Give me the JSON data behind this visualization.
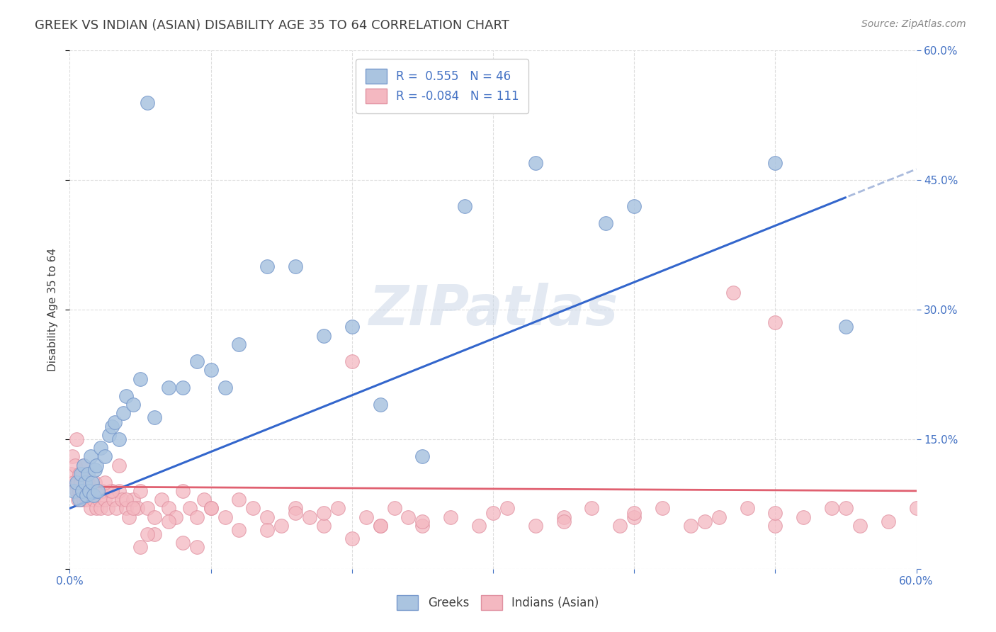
{
  "title": "GREEK VS INDIAN (ASIAN) DISABILITY AGE 35 TO 64 CORRELATION CHART",
  "source": "Source: ZipAtlas.com",
  "ylabel": "Disability Age 35 to 64",
  "xlim": [
    0.0,
    0.6
  ],
  "ylim": [
    0.0,
    0.6
  ],
  "greek_line_start_y": 0.07,
  "greek_line_end_x": 0.55,
  "greek_line_end_y": 0.43,
  "greek_line_color": "#3366cc",
  "greek_dash_color": "#aabbdd",
  "indian_line_color": "#e06070",
  "indian_line_start_y": 0.095,
  "indian_line_slope": -0.008,
  "watermark": "ZIPatlas",
  "bg_color": "#ffffff",
  "grid_color": "#dddddd",
  "title_color": "#404040",
  "tick_color": "#4472c4",
  "greek_scatter_face": "#aac4e0",
  "greek_scatter_edge": "#7799cc",
  "indian_scatter_face": "#f4b8c1",
  "indian_scatter_edge": "#e090a0",
  "greek_points_x": [
    0.003,
    0.005,
    0.007,
    0.008,
    0.009,
    0.01,
    0.011,
    0.012,
    0.013,
    0.014,
    0.015,
    0.016,
    0.017,
    0.018,
    0.019,
    0.02,
    0.022,
    0.025,
    0.028,
    0.03,
    0.032,
    0.035,
    0.038,
    0.04,
    0.045,
    0.05,
    0.055,
    0.06,
    0.07,
    0.08,
    0.09,
    0.1,
    0.11,
    0.12,
    0.14,
    0.16,
    0.18,
    0.2,
    0.22,
    0.25,
    0.28,
    0.33,
    0.38,
    0.4,
    0.5,
    0.55
  ],
  "greek_points_y": [
    0.09,
    0.1,
    0.08,
    0.11,
    0.09,
    0.12,
    0.1,
    0.085,
    0.11,
    0.09,
    0.13,
    0.1,
    0.085,
    0.115,
    0.12,
    0.09,
    0.14,
    0.13,
    0.155,
    0.165,
    0.17,
    0.15,
    0.18,
    0.2,
    0.19,
    0.22,
    0.54,
    0.175,
    0.21,
    0.21,
    0.24,
    0.23,
    0.21,
    0.26,
    0.35,
    0.35,
    0.27,
    0.28,
    0.19,
    0.13,
    0.42,
    0.47,
    0.4,
    0.42,
    0.47,
    0.28
  ],
  "indian_points_x": [
    0.001,
    0.002,
    0.003,
    0.004,
    0.005,
    0.005,
    0.006,
    0.006,
    0.007,
    0.007,
    0.008,
    0.008,
    0.009,
    0.009,
    0.01,
    0.01,
    0.011,
    0.012,
    0.013,
    0.014,
    0.015,
    0.016,
    0.017,
    0.018,
    0.019,
    0.02,
    0.021,
    0.022,
    0.023,
    0.025,
    0.027,
    0.029,
    0.031,
    0.033,
    0.035,
    0.037,
    0.04,
    0.042,
    0.045,
    0.048,
    0.05,
    0.055,
    0.06,
    0.065,
    0.07,
    0.075,
    0.08,
    0.085,
    0.09,
    0.095,
    0.1,
    0.11,
    0.12,
    0.13,
    0.14,
    0.15,
    0.16,
    0.17,
    0.18,
    0.19,
    0.2,
    0.21,
    0.22,
    0.23,
    0.24,
    0.25,
    0.27,
    0.29,
    0.31,
    0.33,
    0.35,
    0.37,
    0.39,
    0.4,
    0.42,
    0.44,
    0.46,
    0.48,
    0.5,
    0.52,
    0.54,
    0.56,
    0.58,
    0.6,
    0.03,
    0.04,
    0.05,
    0.06,
    0.07,
    0.08,
    0.09,
    0.1,
    0.12,
    0.14,
    0.16,
    0.18,
    0.2,
    0.22,
    0.25,
    0.3,
    0.35,
    0.4,
    0.45,
    0.5,
    0.55,
    0.47,
    0.5,
    0.025,
    0.035,
    0.045,
    0.055
  ],
  "indian_points_y": [
    0.11,
    0.13,
    0.1,
    0.12,
    0.09,
    0.15,
    0.08,
    0.1,
    0.09,
    0.11,
    0.08,
    0.1,
    0.09,
    0.11,
    0.08,
    0.12,
    0.09,
    0.08,
    0.1,
    0.09,
    0.07,
    0.09,
    0.08,
    0.1,
    0.07,
    0.09,
    0.08,
    0.07,
    0.09,
    0.08,
    0.07,
    0.09,
    0.08,
    0.07,
    0.09,
    0.08,
    0.07,
    0.06,
    0.08,
    0.07,
    0.09,
    0.07,
    0.06,
    0.08,
    0.07,
    0.06,
    0.09,
    0.07,
    0.06,
    0.08,
    0.07,
    0.06,
    0.08,
    0.07,
    0.06,
    0.05,
    0.07,
    0.06,
    0.05,
    0.07,
    0.24,
    0.06,
    0.05,
    0.07,
    0.06,
    0.05,
    0.06,
    0.05,
    0.07,
    0.05,
    0.06,
    0.07,
    0.05,
    0.06,
    0.07,
    0.05,
    0.06,
    0.07,
    0.05,
    0.06,
    0.07,
    0.05,
    0.055,
    0.07,
    0.09,
    0.08,
    0.025,
    0.04,
    0.055,
    0.03,
    0.025,
    0.07,
    0.045,
    0.045,
    0.065,
    0.065,
    0.035,
    0.05,
    0.055,
    0.065,
    0.055,
    0.065,
    0.055,
    0.065,
    0.07,
    0.32,
    0.285,
    0.1,
    0.12,
    0.07,
    0.04
  ]
}
